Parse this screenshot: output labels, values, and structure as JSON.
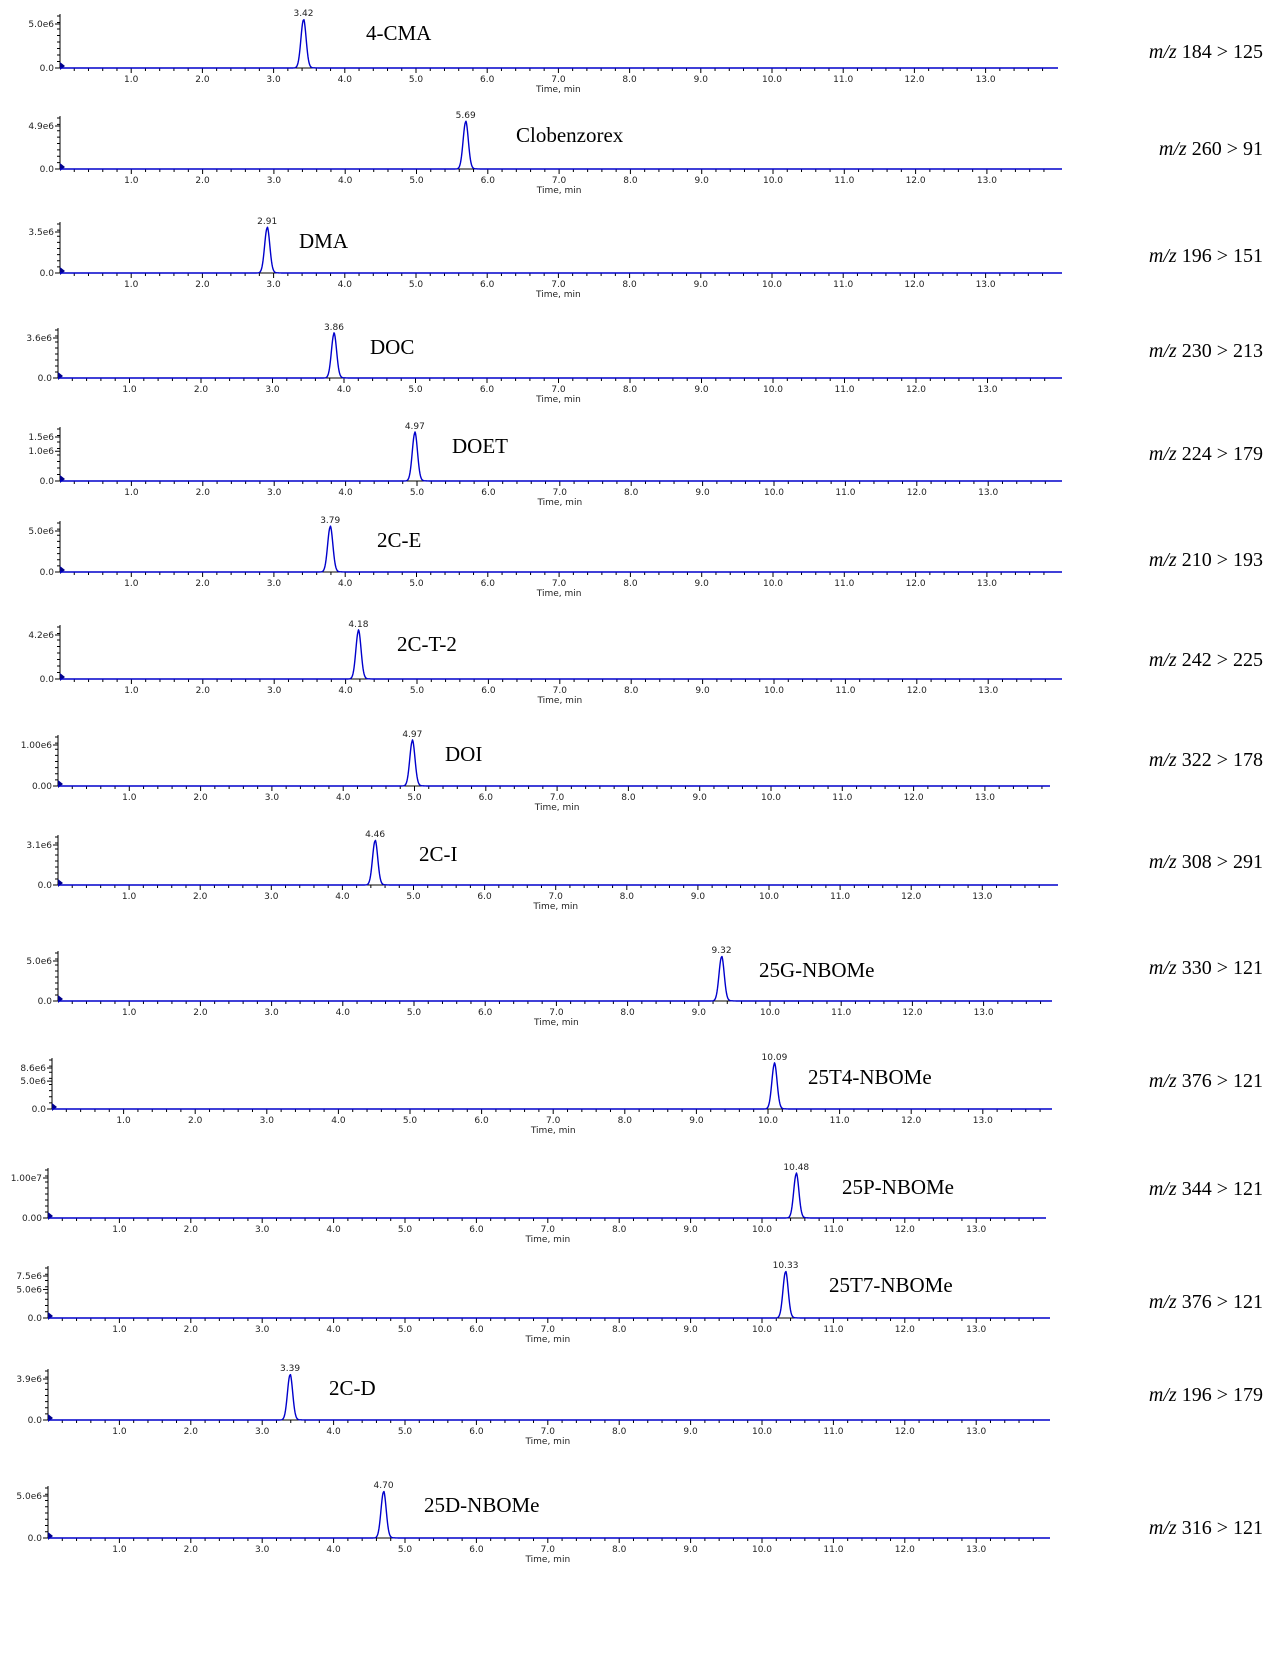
{
  "x_axis": {
    "label": "Time, min",
    "ticks": [
      "1.0",
      "2.0",
      "3.0",
      "4.0",
      "5.0",
      "6.0",
      "7.0",
      "8.0",
      "9.0",
      "10.0",
      "11.0",
      "12.0",
      "13.0"
    ]
  },
  "colors": {
    "trace": "#0000cc",
    "axis": "#000000",
    "marker": "#00008b"
  },
  "chart_data": [
    {
      "type": "line",
      "compound": "4-CMA",
      "transition": "184 > 125",
      "peak_time": 3.42,
      "peak_label": "3.42",
      "y_ticks": [
        "5.0e6",
        "0.0"
      ]
    },
    {
      "type": "line",
      "compound": "Clobenzorex",
      "transition": "260 > 91",
      "peak_time": 5.69,
      "peak_label": "5.69",
      "y_ticks": [
        "4.9e6",
        "0.0"
      ]
    },
    {
      "type": "line",
      "compound": "DMA",
      "transition": "196 > 151",
      "peak_time": 2.91,
      "peak_label": "2.91",
      "y_ticks": [
        "3.5e6",
        "0.0"
      ]
    },
    {
      "type": "line",
      "compound": "DOC",
      "transition": "230 > 213",
      "peak_time": 3.86,
      "peak_label": "3.86",
      "y_ticks": [
        "3.6e6",
        "0.0"
      ]
    },
    {
      "type": "line",
      "compound": "DOET",
      "transition": "224 > 179",
      "peak_time": 4.97,
      "peak_label": "4.97",
      "y_ticks": [
        "1.5e6",
        "1.0e6",
        "0.0"
      ]
    },
    {
      "type": "line",
      "compound": "2C-E",
      "transition": "210 > 193",
      "peak_time": 3.79,
      "peak_label": "3.79",
      "y_ticks": [
        "5.0e6",
        "0.0"
      ]
    },
    {
      "type": "line",
      "compound": "2C-T-2",
      "transition": "242 > 225",
      "peak_time": 4.18,
      "peak_label": "4.18",
      "y_ticks": [
        "4.2e6",
        "0.0"
      ]
    },
    {
      "type": "line",
      "compound": "DOI",
      "transition": "322 > 178",
      "peak_time": 4.97,
      "peak_label": "4.97",
      "y_ticks": [
        "1.00e6",
        "0.00"
      ]
    },
    {
      "type": "line",
      "compound": "2C-I",
      "transition": "308 > 291",
      "peak_time": 4.46,
      "peak_label": "4.46",
      "y_ticks": [
        "3.1e6",
        "0.0"
      ]
    },
    {
      "type": "line",
      "compound": "25G-NBOMe",
      "transition": "330 > 121",
      "peak_time": 9.32,
      "peak_label": "9.32",
      "y_ticks": [
        "5.0e6",
        "0.0"
      ]
    },
    {
      "type": "line",
      "compound": "25T4-NBOMe",
      "transition": "376 > 121",
      "peak_time": 10.09,
      "peak_label": "10.09",
      "y_ticks": [
        "8.6e6",
        "5.0e6",
        "0.0"
      ]
    },
    {
      "type": "line",
      "compound": "25P-NBOMe",
      "transition": "344 > 121",
      "peak_time": 10.48,
      "peak_label": "10.48",
      "y_ticks": [
        "1.00e7",
        "0.00"
      ]
    },
    {
      "type": "line",
      "compound": "25T7-NBOMe",
      "transition": "376 > 121",
      "peak_time": 10.33,
      "peak_label": "10.33",
      "y_ticks": [
        "7.5e6",
        "5.0e6",
        "0.0"
      ]
    },
    {
      "type": "line",
      "compound": "2C-D",
      "transition": "196 > 179",
      "peak_time": 3.39,
      "peak_label": "3.39",
      "y_ticks": [
        "3.9e6",
        "0.0"
      ]
    },
    {
      "type": "line",
      "compound": "25D-NBOMe",
      "transition": "316 > 121",
      "peak_time": 4.7,
      "peak_label": "4.70",
      "y_ticks": [
        "5.0e6",
        "0.0"
      ]
    }
  ]
}
